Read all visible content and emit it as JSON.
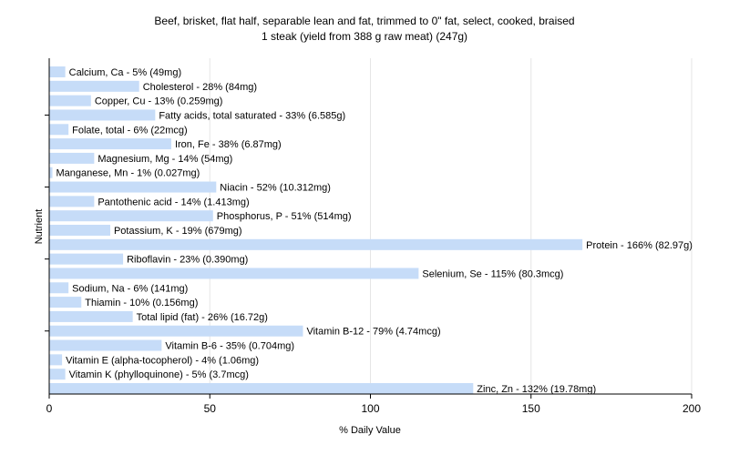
{
  "chart_data": {
    "type": "bar",
    "orientation": "horizontal",
    "title": "Beef, brisket, flat half, separable lean and fat, trimmed to 0\" fat, select, cooked, braised",
    "subtitle": "1 steak (yield from 388 g raw meat) (247g)",
    "xlabel": "% Daily Value",
    "ylabel": "Nutrient",
    "xlim": [
      0,
      200
    ],
    "xticks": [
      0,
      50,
      100,
      150,
      200
    ],
    "grid": true,
    "bar_color": "#c6dcf8",
    "categories": [
      "Calcium, Ca",
      "Cholesterol",
      "Copper, Cu",
      "Fatty acids, total saturated",
      "Folate, total",
      "Iron, Fe",
      "Magnesium, Mg",
      "Manganese, Mn",
      "Niacin",
      "Pantothenic acid",
      "Phosphorus, P",
      "Potassium, K",
      "Protein",
      "Riboflavin",
      "Selenium, Se",
      "Sodium, Na",
      "Thiamin",
      "Total lipid (fat)",
      "Vitamin B-12",
      "Vitamin B-6",
      "Vitamin E (alpha-tocopherol)",
      "Vitamin K (phylloquinone)",
      "Zinc, Zn"
    ],
    "values": [
      5,
      28,
      13,
      33,
      6,
      38,
      14,
      1,
      52,
      14,
      51,
      19,
      166,
      23,
      115,
      6,
      10,
      26,
      79,
      35,
      4,
      5,
      132
    ],
    "labels": [
      "Calcium, Ca - 5% (49mg)",
      "Cholesterol - 28% (84mg)",
      "Copper, Cu - 13% (0.259mg)",
      "Fatty acids, total saturated - 33% (6.585g)",
      "Folate, total - 6% (22mcg)",
      "Iron, Fe - 38% (6.87mg)",
      "Magnesium, Mg - 14% (54mg)",
      "Manganese, Mn - 1% (0.027mg)",
      "Niacin - 52% (10.312mg)",
      "Pantothenic acid - 14% (1.413mg)",
      "Phosphorus, P - 51% (514mg)",
      "Potassium, K - 19% (679mg)",
      "Protein - 166% (82.97g)",
      "Riboflavin - 23% (0.390mg)",
      "Selenium, Se - 115% (80.3mcg)",
      "Sodium, Na - 6% (141mg)",
      "Thiamin - 10% (0.156mg)",
      "Total lipid (fat) - 26% (16.72g)",
      "Vitamin B-12 - 79% (4.74mcg)",
      "Vitamin B-6 - 35% (0.704mg)",
      "Vitamin E (alpha-tocopherol) - 4% (1.06mg)",
      "Vitamin K (phylloquinone) - 5% (3.7mcg)",
      "Zinc, Zn - 132% (19.78mg)"
    ]
  }
}
